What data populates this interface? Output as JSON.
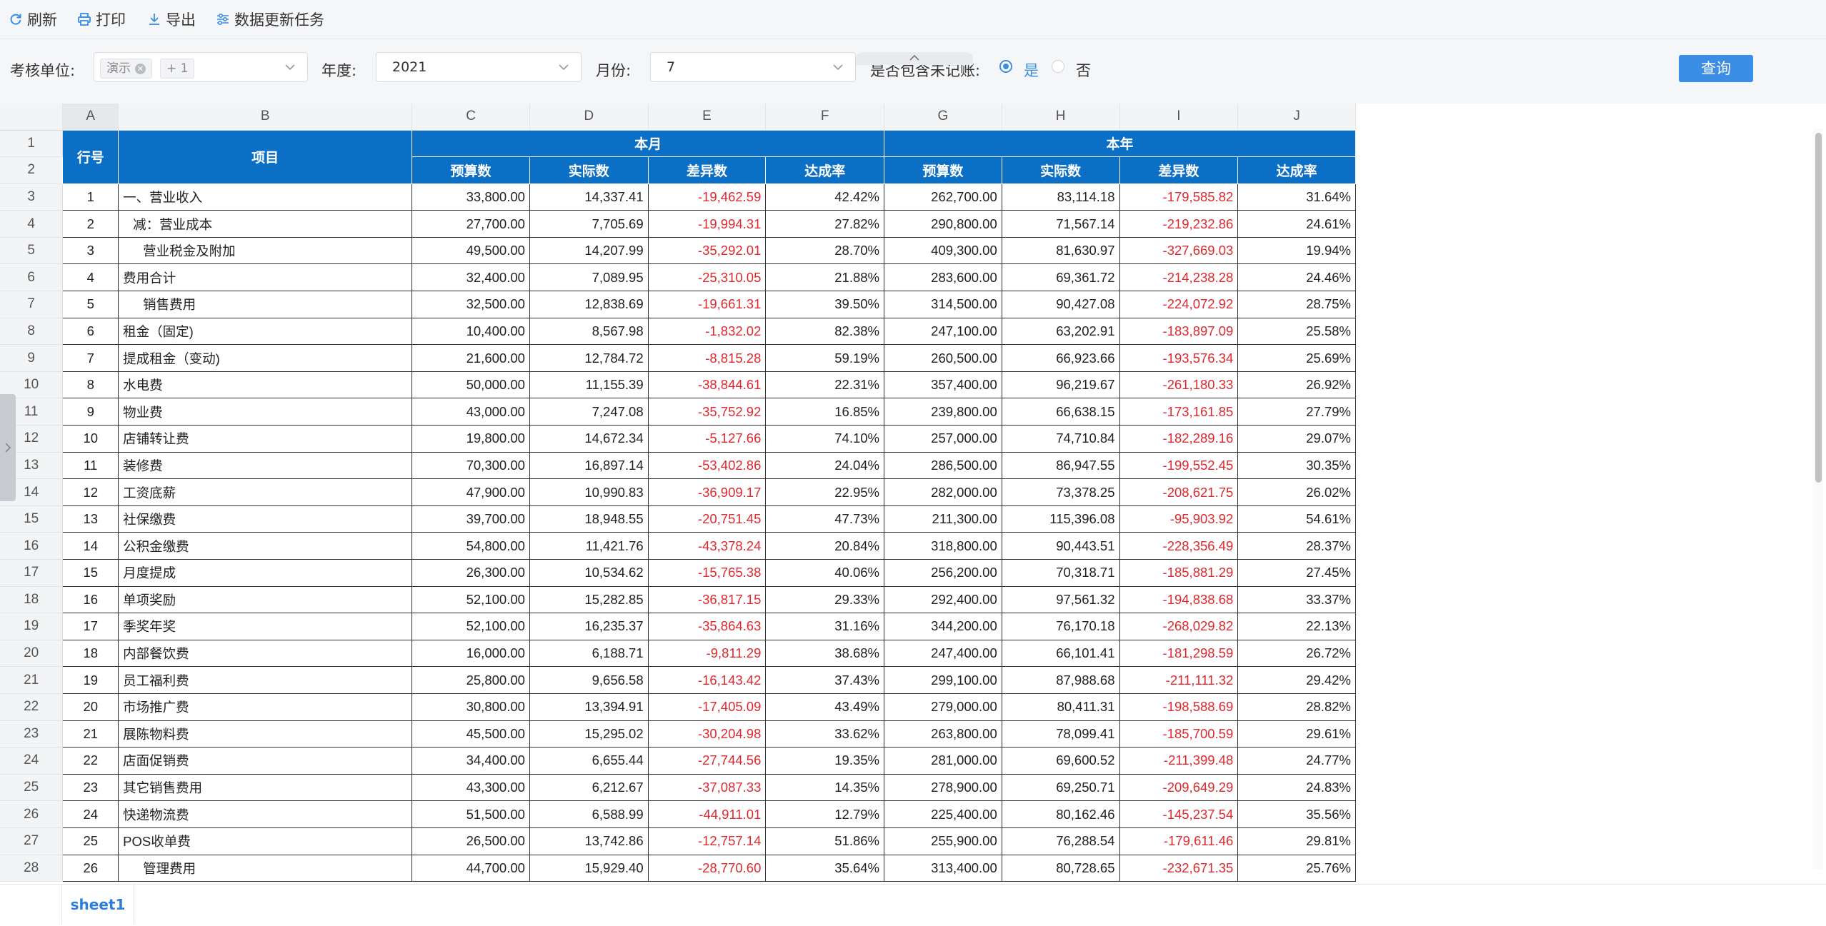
{
  "toolbar": {
    "refresh_label": "刷新",
    "print_label": "打印",
    "export_label": "导出",
    "update_task_label": "数据更新任务"
  },
  "filters": {
    "unit_label": "考核单位:",
    "unit_tag": "演示",
    "unit_more": "+ 1",
    "year_label": "年度:",
    "year_value": "2021",
    "month_label": "月份:",
    "month_value": "7",
    "include_label": "是否包含未记账:",
    "yes_label": "是",
    "no_label": "否",
    "include_selected": "是",
    "query_label": "查询"
  },
  "colors": {
    "accent": "#3a8ee6",
    "header_bg": "#0b6fc6",
    "negative": "#e0282e"
  },
  "sheet": {
    "col_letters": [
      "A",
      "B",
      "C",
      "D",
      "E",
      "F",
      "G",
      "H",
      "I",
      "J"
    ],
    "header": {
      "row_no": "行号",
      "item": "项目",
      "month_group": "本月",
      "year_group": "本年",
      "sub": [
        "预算数",
        "实际数",
        "差异数",
        "达成率",
        "预算数",
        "实际数",
        "差异数",
        "达成率"
      ]
    },
    "rows": [
      {
        "no": "1",
        "item": "一、营业收入",
        "indent": 0,
        "v": [
          "33,800.00",
          "14,337.41",
          "-19,462.59",
          "42.42%",
          "262,700.00",
          "83,114.18",
          "-179,585.82",
          "31.64%"
        ]
      },
      {
        "no": "2",
        "item": "减：营业成本",
        "indent": 1,
        "v": [
          "27,700.00",
          "7,705.69",
          "-19,994.31",
          "27.82%",
          "290,800.00",
          "71,567.14",
          "-219,232.86",
          "24.61%"
        ]
      },
      {
        "no": "3",
        "item": "营业税金及附加",
        "indent": 2,
        "v": [
          "49,500.00",
          "14,207.99",
          "-35,292.01",
          "28.70%",
          "409,300.00",
          "81,630.97",
          "-327,669.03",
          "19.94%"
        ]
      },
      {
        "no": "4",
        "item": "费用合计",
        "indent": 0,
        "v": [
          "32,400.00",
          "7,089.95",
          "-25,310.05",
          "21.88%",
          "283,600.00",
          "69,361.72",
          "-214,238.28",
          "24.46%"
        ]
      },
      {
        "no": "5",
        "item": "销售费用",
        "indent": 2,
        "v": [
          "32,500.00",
          "12,838.69",
          "-19,661.31",
          "39.50%",
          "314,500.00",
          "90,427.08",
          "-224,072.92",
          "28.75%"
        ]
      },
      {
        "no": "6",
        "item": "租金（固定)",
        "indent": 0,
        "v": [
          "10,400.00",
          "8,567.98",
          "-1,832.02",
          "82.38%",
          "247,100.00",
          "63,202.91",
          "-183,897.09",
          "25.58%"
        ]
      },
      {
        "no": "7",
        "item": "提成租金（变动)",
        "indent": 0,
        "v": [
          "21,600.00",
          "12,784.72",
          "-8,815.28",
          "59.19%",
          "260,500.00",
          "66,923.66",
          "-193,576.34",
          "25.69%"
        ]
      },
      {
        "no": "8",
        "item": "水电费",
        "indent": 0,
        "v": [
          "50,000.00",
          "11,155.39",
          "-38,844.61",
          "22.31%",
          "357,400.00",
          "96,219.67",
          "-261,180.33",
          "26.92%"
        ]
      },
      {
        "no": "9",
        "item": "物业费",
        "indent": 0,
        "v": [
          "43,000.00",
          "7,247.08",
          "-35,752.92",
          "16.85%",
          "239,800.00",
          "66,638.15",
          "-173,161.85",
          "27.79%"
        ]
      },
      {
        "no": "10",
        "item": "店铺转让费",
        "indent": 0,
        "v": [
          "19,800.00",
          "14,672.34",
          "-5,127.66",
          "74.10%",
          "257,000.00",
          "74,710.84",
          "-182,289.16",
          "29.07%"
        ]
      },
      {
        "no": "11",
        "item": "装修费",
        "indent": 0,
        "v": [
          "70,300.00",
          "16,897.14",
          "-53,402.86",
          "24.04%",
          "286,500.00",
          "86,947.55",
          "-199,552.45",
          "30.35%"
        ]
      },
      {
        "no": "12",
        "item": "工资底薪",
        "indent": 0,
        "v": [
          "47,900.00",
          "10,990.83",
          "-36,909.17",
          "22.95%",
          "282,000.00",
          "73,378.25",
          "-208,621.75",
          "26.02%"
        ]
      },
      {
        "no": "13",
        "item": "社保缴费",
        "indent": 0,
        "v": [
          "39,700.00",
          "18,948.55",
          "-20,751.45",
          "47.73%",
          "211,300.00",
          "115,396.08",
          "-95,903.92",
          "54.61%"
        ]
      },
      {
        "no": "14",
        "item": "公积金缴费",
        "indent": 0,
        "v": [
          "54,800.00",
          "11,421.76",
          "-43,378.24",
          "20.84%",
          "318,800.00",
          "90,443.51",
          "-228,356.49",
          "28.37%"
        ]
      },
      {
        "no": "15",
        "item": "月度提成",
        "indent": 0,
        "v": [
          "26,300.00",
          "10,534.62",
          "-15,765.38",
          "40.06%",
          "256,200.00",
          "70,318.71",
          "-185,881.29",
          "27.45%"
        ]
      },
      {
        "no": "16",
        "item": "单项奖励",
        "indent": 0,
        "v": [
          "52,100.00",
          "15,282.85",
          "-36,817.15",
          "29.33%",
          "292,400.00",
          "97,561.32",
          "-194,838.68",
          "33.37%"
        ]
      },
      {
        "no": "17",
        "item": "季奖年奖",
        "indent": 0,
        "v": [
          "52,100.00",
          "16,235.37",
          "-35,864.63",
          "31.16%",
          "344,200.00",
          "76,170.18",
          "-268,029.82",
          "22.13%"
        ]
      },
      {
        "no": "18",
        "item": "内部餐饮费",
        "indent": 0,
        "v": [
          "16,000.00",
          "6,188.71",
          "-9,811.29",
          "38.68%",
          "247,400.00",
          "66,101.41",
          "-181,298.59",
          "26.72%"
        ]
      },
      {
        "no": "19",
        "item": "员工福利费",
        "indent": 0,
        "v": [
          "25,800.00",
          "9,656.58",
          "-16,143.42",
          "37.43%",
          "299,100.00",
          "87,988.68",
          "-211,111.32",
          "29.42%"
        ]
      },
      {
        "no": "20",
        "item": "市场推广费",
        "indent": 0,
        "v": [
          "30,800.00",
          "13,394.91",
          "-17,405.09",
          "43.49%",
          "279,000.00",
          "80,411.31",
          "-198,588.69",
          "28.82%"
        ]
      },
      {
        "no": "21",
        "item": "展陈物料费",
        "indent": 0,
        "v": [
          "45,500.00",
          "15,295.02",
          "-30,204.98",
          "33.62%",
          "263,800.00",
          "78,099.41",
          "-185,700.59",
          "29.61%"
        ]
      },
      {
        "no": "22",
        "item": "店面促销费",
        "indent": 0,
        "v": [
          "34,400.00",
          "6,655.44",
          "-27,744.56",
          "19.35%",
          "281,000.00",
          "69,600.52",
          "-211,399.48",
          "24.77%"
        ]
      },
      {
        "no": "23",
        "item": "其它销售费用",
        "indent": 0,
        "v": [
          "43,300.00",
          "6,212.67",
          "-37,087.33",
          "14.35%",
          "278,900.00",
          "69,250.71",
          "-209,649.29",
          "24.83%"
        ]
      },
      {
        "no": "24",
        "item": "快递物流费",
        "indent": 0,
        "v": [
          "51,500.00",
          "6,588.99",
          "-44,911.01",
          "12.79%",
          "225,400.00",
          "80,162.46",
          "-145,237.54",
          "35.56%"
        ]
      },
      {
        "no": "25",
        "item": "POS收单费",
        "indent": 0,
        "v": [
          "26,500.00",
          "13,742.86",
          "-12,757.14",
          "51.86%",
          "255,900.00",
          "76,288.54",
          "-179,611.46",
          "29.81%"
        ]
      },
      {
        "no": "26",
        "item": "管理费用",
        "indent": 2,
        "v": [
          "44,700.00",
          "15,929.40",
          "-28,770.60",
          "35.64%",
          "313,400.00",
          "80,728.65",
          "-232,671.35",
          "25.76%"
        ]
      }
    ],
    "tab": "sheet1"
  }
}
